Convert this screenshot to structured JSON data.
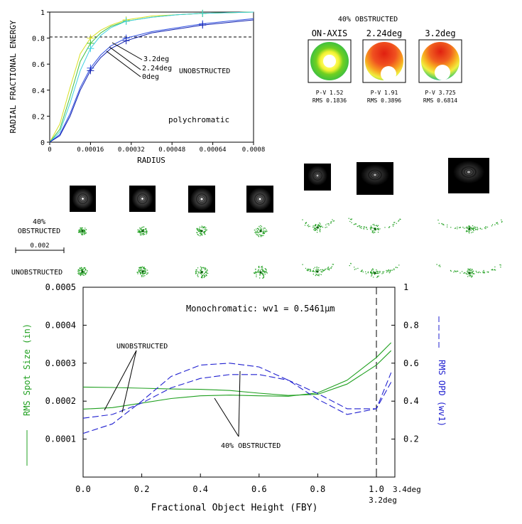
{
  "energy_chart": {
    "ylabel": "RADIAL FRACTIONAL ENERGY",
    "xlabel": "RADIUS",
    "annotation": "polychromatic",
    "yticks": [
      "0",
      "0.2",
      "0.4",
      "0.6",
      "0.8",
      "1"
    ],
    "xticks": [
      "0",
      "0.00016",
      "0.00032",
      "0.00048",
      "0.00064",
      "0.0008"
    ],
    "curve_labels": [
      "3.2deg",
      "2.24deg",
      "0deg"
    ],
    "group_label": "UNOBSTRUCTED"
  },
  "interferograms": {
    "title": "40% OBSTRUCTED",
    "items": [
      {
        "label": "ON-AXIS",
        "pv": "P-V 1.52",
        "rms": "RMS 0.1836"
      },
      {
        "label": "2.24deg",
        "pv": "P-V 1.91",
        "rms": "RMS 0.3896"
      },
      {
        "label": "3.2deg",
        "pv": "P-V 3.725",
        "rms": "RMS 0.6814"
      }
    ]
  },
  "spots": {
    "row1_label": [
      "40%",
      "OBSTRUCTED"
    ],
    "row2_label": "UNOBSTRUCTED",
    "scale_label": "0.002"
  },
  "bottom_chart": {
    "annotation": "Monochromatic: wv1 = 0.5461μm",
    "xlabel": "Fractional Object Height (FBY)",
    "ylabel_left": "RMS Spot Size (in)",
    "ylabel_right": "RMS OPD (wv1)",
    "left_ticks": [
      "0.0005",
      "0.0004",
      "0.0003",
      "0.0002",
      "0.0001"
    ],
    "right_ticks": [
      "1",
      "0.8",
      "0.6",
      "0.4",
      "0.2"
    ],
    "xticks": [
      "0.0",
      "0.2",
      "0.4",
      "0.6",
      "0.8",
      "1.0"
    ],
    "x_end_label": "3.4deg",
    "marker_label": "3.2deg",
    "label_unobstructed": "UNOBSTRUCTED",
    "label_obstructed": "40% OBSTRUCTED"
  },
  "chart_data": [
    {
      "type": "line",
      "title": "",
      "xlabel": "RADIUS",
      "ylabel": "RADIAL FRACTIONAL ENERGY",
      "xlim": [
        0,
        0.0008
      ],
      "ylim": [
        0,
        1
      ],
      "reference_line": 0.8,
      "annotation": "polychromatic",
      "series": [
        {
          "color": "#d8e020",
          "x": [
            0,
            4e-05,
            8e-05,
            0.00012,
            0.00016,
            0.0002,
            0.00024,
            0.0003,
            0.0004,
            0.0005,
            0.0006,
            0.0007,
            0.0008
          ],
          "y": [
            0,
            0.14,
            0.42,
            0.68,
            0.8,
            0.86,
            0.9,
            0.94,
            0.97,
            0.98,
            0.99,
            0.995,
            1.0
          ]
        },
        {
          "color": "#40c040",
          "x": [
            0,
            4e-05,
            8e-05,
            0.00012,
            0.00016,
            0.0002,
            0.00024,
            0.0003,
            0.0004,
            0.0005,
            0.0006,
            0.0007,
            0.0008
          ],
          "y": [
            0,
            0.1,
            0.35,
            0.62,
            0.76,
            0.84,
            0.89,
            0.93,
            0.96,
            0.98,
            0.99,
            0.995,
            1.0
          ]
        },
        {
          "color": "#40d0e0",
          "x": [
            0,
            4e-05,
            8e-05,
            0.00012,
            0.00016,
            0.0002,
            0.00024,
            0.0003,
            0.0004,
            0.0005,
            0.0006,
            0.0007,
            0.0008
          ],
          "y": [
            0,
            0.08,
            0.3,
            0.55,
            0.72,
            0.82,
            0.88,
            0.93,
            0.96,
            0.98,
            0.99,
            0.995,
            1.0
          ]
        },
        {
          "color": "#3050e0",
          "x": [
            0,
            4e-05,
            8e-05,
            0.00012,
            0.00016,
            0.0002,
            0.00024,
            0.0003,
            0.0004,
            0.0005,
            0.0006,
            0.0007,
            0.0008
          ],
          "y": [
            0,
            0.06,
            0.22,
            0.42,
            0.57,
            0.67,
            0.74,
            0.8,
            0.85,
            0.88,
            0.91,
            0.93,
            0.95
          ]
        },
        {
          "color": "#1020b0",
          "x": [
            0,
            4e-05,
            8e-05,
            0.00012,
            0.00016,
            0.0002,
            0.00024,
            0.0003,
            0.0004,
            0.0005,
            0.0006,
            0.0007,
            0.0008
          ],
          "y": [
            0,
            0.05,
            0.2,
            0.4,
            0.55,
            0.65,
            0.72,
            0.78,
            0.84,
            0.87,
            0.9,
            0.92,
            0.94
          ]
        }
      ]
    },
    {
      "type": "line",
      "title": "",
      "xlabel": "Fractional Object Height (FBY)",
      "ylabel": "RMS Spot Size (in)",
      "y2label": "RMS OPD (wv1)",
      "xlim": [
        0,
        1.05
      ],
      "ylim": [
        0,
        0.0005
      ],
      "y2lim": [
        0,
        1
      ],
      "vline": 1.0,
      "annotation": "Monochromatic: wv1 = 0.5461μm",
      "series": [
        {
          "axis": "left",
          "color": "#20a020",
          "style": "solid",
          "x": [
            0,
            0.1,
            0.2,
            0.3,
            0.4,
            0.5,
            0.6,
            0.7,
            0.8,
            0.9,
            1.0,
            1.05
          ],
          "y": [
            0.000237,
            0.000236,
            0.000234,
            0.000232,
            0.000231,
            0.000228,
            0.000221,
            0.000215,
            0.000218,
            0.000245,
            0.000295,
            0.000333
          ]
        },
        {
          "axis": "left",
          "color": "#20a020",
          "style": "solid",
          "x": [
            0,
            0.1,
            0.2,
            0.3,
            0.4,
            0.5,
            0.6,
            0.7,
            0.8,
            0.9,
            1.0,
            1.05
          ],
          "y": [
            0.000179,
            0.000183,
            0.000195,
            0.000207,
            0.000214,
            0.000216,
            0.000214,
            0.000213,
            0.000222,
            0.000255,
            0.000315,
            0.000354
          ]
        },
        {
          "axis": "right",
          "color": "#2020d0",
          "style": "dashed",
          "x": [
            0,
            0.1,
            0.2,
            0.3,
            0.4,
            0.5,
            0.6,
            0.7,
            0.8,
            0.9,
            1.0,
            1.05
          ],
          "y": [
            0.31,
            0.33,
            0.39,
            0.47,
            0.52,
            0.54,
            0.54,
            0.51,
            0.44,
            0.36,
            0.36,
            0.5
          ]
        },
        {
          "axis": "right",
          "color": "#2020d0",
          "style": "dashed",
          "x": [
            0,
            0.1,
            0.2,
            0.3,
            0.4,
            0.5,
            0.6,
            0.7,
            0.8,
            0.9,
            1.0,
            1.05
          ],
          "y": [
            0.23,
            0.28,
            0.4,
            0.53,
            0.59,
            0.6,
            0.58,
            0.51,
            0.41,
            0.33,
            0.36,
            0.55
          ]
        }
      ]
    }
  ]
}
